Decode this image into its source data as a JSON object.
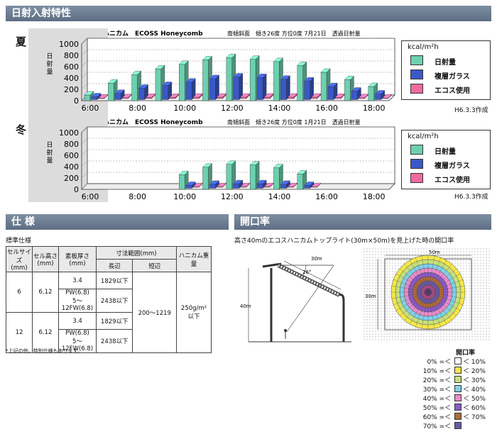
{
  "header_solar": "日射入射特性",
  "header_spec": "仕 様",
  "header_opening": "開口率",
  "colors": {
    "radiation": "#6dd0b0",
    "double_glass": "#3a58c8",
    "ecoss": "#f06aa0"
  },
  "summer": {
    "season": "夏",
    "product": "エコスハニカム　ECOSS Honeycomb",
    "conditions": "南傾斜面　傾き26度 方位0度 7月21日　透過日射量",
    "date_note": "H6.3.3作成"
  },
  "winter": {
    "season": "冬",
    "product": "エコスハニカム　ECOSS Honeycomb",
    "conditions": "南傾斜面　傾き26度 方位0度 1月21日　透過日射量",
    "date_note": "H6.3.3作成"
  },
  "legend": {
    "unit": "kcal/m²h",
    "items": [
      "日射量",
      "複層ガラス",
      "エコス使用"
    ]
  },
  "chart_data": [
    {
      "type": "bar",
      "title": "エコスハニカム　ECOSS Honeycomb",
      "ylabel": "日射量",
      "ylim": [
        0,
        1000
      ],
      "yticks": [
        "1000",
        "800",
        "600",
        "400",
        "200",
        "0"
      ],
      "xtick_labels": [
        "6:00",
        "8:00",
        "10:00",
        "12:00",
        "14:00",
        "16:00",
        "18:00"
      ],
      "categories": [
        "6",
        "7",
        "8",
        "9",
        "10",
        "11",
        "12",
        "13",
        "14",
        "15",
        "16",
        "17",
        "18"
      ],
      "series": [
        {
          "name": "日射量",
          "values": [
            100,
            310,
            460,
            560,
            640,
            720,
            760,
            730,
            690,
            620,
            500,
            370,
            250
          ]
        },
        {
          "name": "複層ガラス",
          "values": [
            50,
            110,
            200,
            250,
            310,
            370,
            400,
            390,
            360,
            330,
            230,
            150,
            100
          ]
        },
        {
          "name": "エコス使用",
          "values": [
            10,
            15,
            20,
            20,
            25,
            25,
            25,
            25,
            25,
            25,
            20,
            15,
            10
          ]
        }
      ]
    },
    {
      "type": "bar",
      "title": "エコスハニカム　ECOSS Honeycomb",
      "ylabel": "日射量",
      "ylim": [
        0,
        1000
      ],
      "yticks": [
        "1000",
        "800",
        "600",
        "400",
        "200",
        "0"
      ],
      "xtick_labels": [
        "6:00",
        "8:00",
        "10:00",
        "12:00",
        "14:00",
        "16:00",
        "18:00"
      ],
      "categories": [
        "6",
        "7",
        "8",
        "9",
        "10",
        "11",
        "12",
        "13",
        "14",
        "15",
        "16",
        "17",
        "18"
      ],
      "series": [
        {
          "name": "日射量",
          "values": [
            0,
            0,
            0,
            0,
            260,
            390,
            440,
            430,
            380,
            270,
            0,
            0,
            0
          ]
        },
        {
          "name": "複層ガラス",
          "values": [
            0,
            0,
            0,
            0,
            50,
            70,
            80,
            80,
            70,
            50,
            0,
            0,
            0
          ]
        },
        {
          "name": "エコス使用",
          "values": [
            0,
            0,
            0,
            0,
            10,
            10,
            10,
            10,
            10,
            10,
            0,
            0,
            0
          ]
        }
      ]
    }
  ],
  "spec": {
    "subtitle": "標準仕様",
    "headers": {
      "cell_size": "セルサイズ\n(mm)",
      "cell_height": "セル高さ\n(mm)",
      "thickness": "素板厚さ\n(mm)",
      "dims": "寸法範囲(mm)",
      "long": "長辺",
      "short": "短辺",
      "weight": "ハニカム重量"
    },
    "rows": [
      {
        "cell_size": "6",
        "cell_height": "6.12",
        "t1": "3.4",
        "l1": "1829以下",
        "t2": "PW(6.8)\n5～12FW(6.8)",
        "l2": "2438以下"
      },
      {
        "cell_size": "12",
        "cell_height": "6.12",
        "t1": "3.4",
        "l1": "1829以下",
        "t2": "PW(6.8)\n5～12FW(6.8)",
        "l2": "2438以下"
      }
    ],
    "short_range": "200～1219",
    "weight": "250g/m²\n以下",
    "note": "*上記の他、特別仕様もあります。"
  },
  "opening": {
    "caption": "高さ40mのエコスハニカムトップライト(30m×50m)を見上げた時の開口率",
    "dim_30m": "30m",
    "dim_40m": "40m",
    "angle": "26°",
    "dim_50m": "50m",
    "dim_30m_plan": "30m",
    "legend_title": "開口率",
    "legend_items": [
      "0% =＜ □ ＜ 10%",
      "10% =＜ □ ＜ 20%",
      "20% =＜ □ ＜ 30%",
      "30% =＜ □ ＜ 40%",
      "40% =＜ □ ＜ 50%",
      "50% =＜ □ ＜ 60%",
      "60% =＜ □ ＜ 70%",
      "70% =＜ □"
    ],
    "legend_colors": [
      "#ffffff",
      "#f4e64a",
      "#c8e07a",
      "#7fd0e8",
      "#e98cc8",
      "#8a5ac8",
      "#b06a3a",
      "#6a5aa8"
    ]
  }
}
